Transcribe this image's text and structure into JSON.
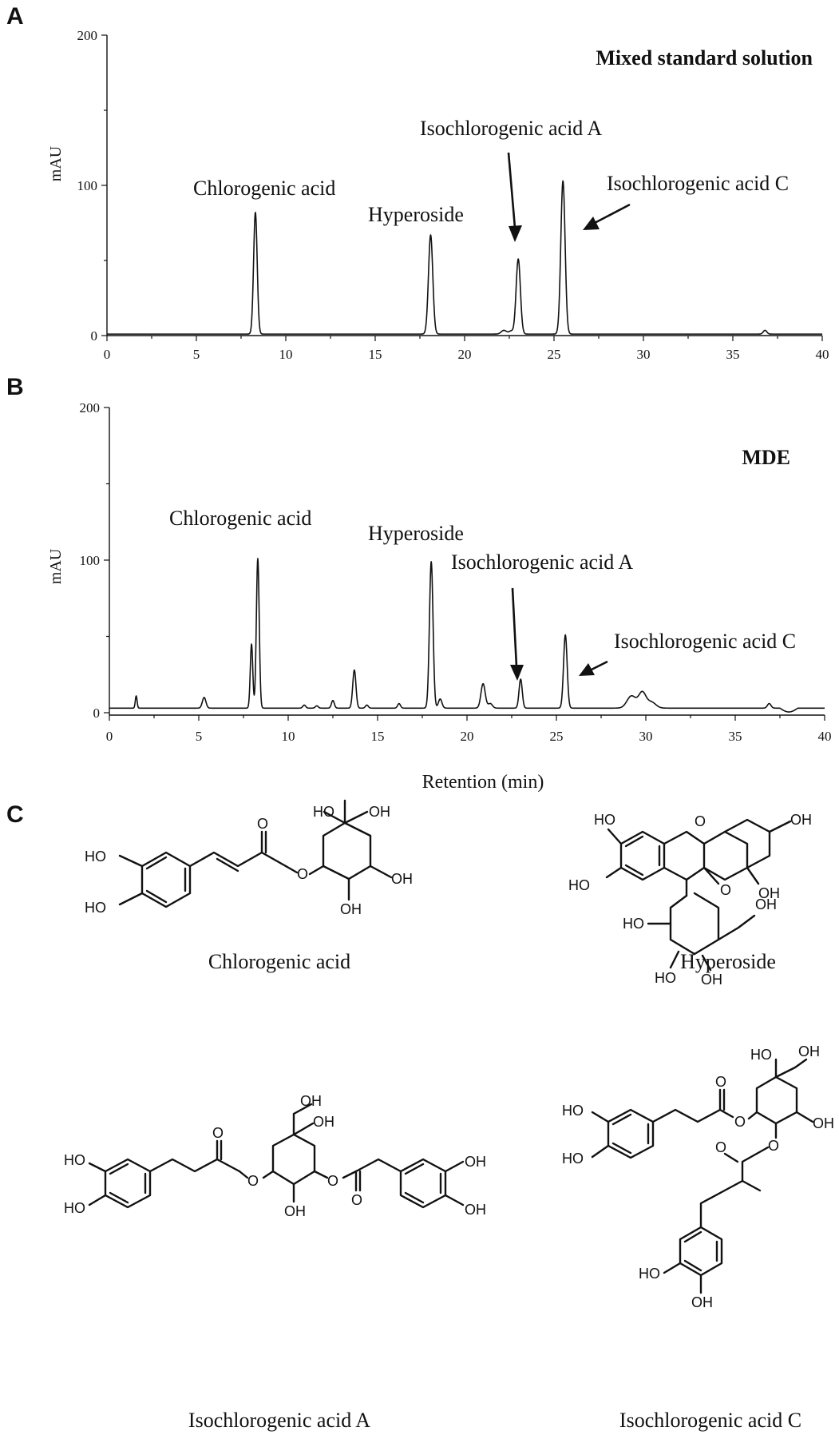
{
  "panels": {
    "a_letter": "A",
    "b_letter": "B",
    "c_letter": "C"
  },
  "chart_data": [
    {
      "type": "line",
      "panel": "A",
      "title": "Mixed standard solution",
      "xlabel": "",
      "ylabel": "mAU",
      "xlim": [
        0,
        40
      ],
      "ylim": [
        -5,
        200
      ],
      "x_ticks": [
        0,
        5,
        10,
        15,
        20,
        25,
        30,
        35,
        40
      ],
      "y_ticks": [
        0,
        100,
        200
      ],
      "baseline": 1,
      "peaks": [
        {
          "x": 8.3,
          "y": 81,
          "w": 0.1
        },
        {
          "x": 18.1,
          "y": 66,
          "w": 0.12
        },
        {
          "x": 22.2,
          "y": 2.5,
          "w": 0.15
        },
        {
          "x": 22.6,
          "y": 2,
          "w": 0.12
        },
        {
          "x": 23.0,
          "y": 50,
          "w": 0.12
        },
        {
          "x": 25.5,
          "y": 102,
          "w": 0.12
        },
        {
          "x": 36.8,
          "y": 2.5,
          "w": 0.1
        }
      ],
      "annotations": [
        {
          "text": "Chlorogenic acid"
        },
        {
          "text": "Hyperoside"
        },
        {
          "text": "Isochlorogenic acid A"
        },
        {
          "text": "Isochlorogenic acid C"
        }
      ]
    },
    {
      "type": "line",
      "panel": "B",
      "title": "MDE",
      "xlabel": "Retention (min)",
      "ylabel": "mAU",
      "xlim": [
        0,
        40
      ],
      "ylim": [
        -5,
        200
      ],
      "x_ticks": [
        0,
        5,
        10,
        15,
        20,
        25,
        30,
        35,
        40
      ],
      "y_ticks": [
        0,
        100,
        200
      ],
      "baseline": 3,
      "peaks": [
        {
          "x": 1.5,
          "y": 8,
          "w": 0.05
        },
        {
          "x": 5.3,
          "y": 7,
          "w": 0.1
        },
        {
          "x": 7.95,
          "y": 42,
          "w": 0.07
        },
        {
          "x": 8.3,
          "y": 98,
          "w": 0.08
        },
        {
          "x": 10.9,
          "y": 2,
          "w": 0.08
        },
        {
          "x": 11.6,
          "y": 1.5,
          "w": 0.08
        },
        {
          "x": 12.5,
          "y": 5,
          "w": 0.08
        },
        {
          "x": 13.7,
          "y": 25,
          "w": 0.09
        },
        {
          "x": 14.4,
          "y": 2,
          "w": 0.08
        },
        {
          "x": 16.2,
          "y": 3,
          "w": 0.08
        },
        {
          "x": 18.0,
          "y": 96,
          "w": 0.1
        },
        {
          "x": 18.5,
          "y": 6,
          "w": 0.1
        },
        {
          "x": 20.9,
          "y": 16,
          "w": 0.12
        },
        {
          "x": 21.3,
          "y": 3,
          "w": 0.12
        },
        {
          "x": 23.0,
          "y": 19,
          "w": 0.09
        },
        {
          "x": 25.5,
          "y": 48,
          "w": 0.1
        },
        {
          "x": 29.2,
          "y": 8,
          "w": 0.25
        },
        {
          "x": 29.8,
          "y": 10,
          "w": 0.2
        },
        {
          "x": 30.3,
          "y": 4,
          "w": 0.25
        },
        {
          "x": 36.9,
          "y": 3,
          "w": 0.1
        }
      ],
      "annotations": [
        {
          "text": "Chlorogenic acid"
        },
        {
          "text": "Hyperoside"
        },
        {
          "text": "Isochlorogenic acid A"
        },
        {
          "text": "Isochlorogenic acid C"
        }
      ]
    }
  ],
  "structures": {
    "atoms": {
      "oh": "OH",
      "ho": "HO",
      "o": "O"
    },
    "captions": {
      "chlorogenic": "Chlorogenic acid",
      "hyperoside": "Hyperoside",
      "isoA": "Isochlorogenic acid A",
      "isoC": "Isochlorogenic acid C"
    }
  }
}
